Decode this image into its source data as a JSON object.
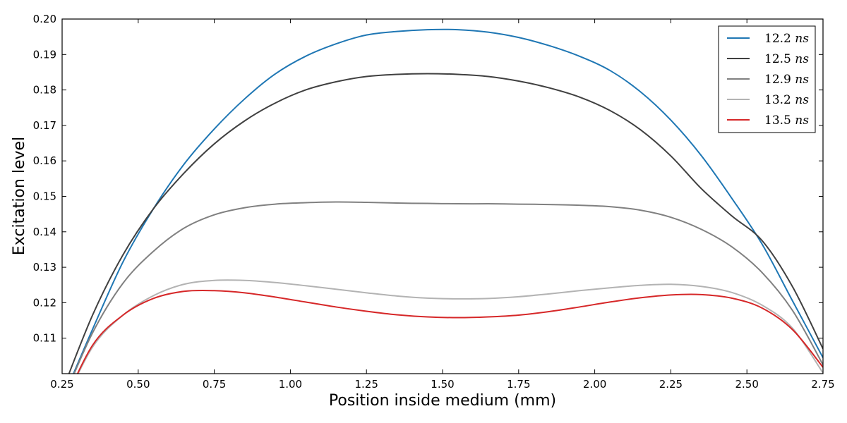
{
  "chart_data": {
    "type": "line",
    "title": "",
    "xlabel": "Position inside medium (mm)",
    "ylabel": "Excitation level",
    "xlim": [
      0.25,
      2.75
    ],
    "ylim": [
      0.1,
      0.2
    ],
    "x_ticks": [
      "0.25",
      "0.50",
      "0.75",
      "1.00",
      "1.25",
      "1.50",
      "1.75",
      "2.00",
      "2.25",
      "2.50",
      "2.75"
    ],
    "y_ticks": [
      "0.11",
      "0.12",
      "0.13",
      "0.14",
      "0.15",
      "0.16",
      "0.17",
      "0.18",
      "0.19",
      "0.20"
    ],
    "grid": false,
    "legend_position": "top-right",
    "x": [
      0.25,
      0.35,
      0.45,
      0.55,
      0.65,
      0.75,
      0.85,
      0.95,
      1.05,
      1.15,
      1.25,
      1.35,
      1.45,
      1.55,
      1.65,
      1.75,
      1.85,
      1.95,
      2.05,
      2.15,
      2.25,
      2.35,
      2.45,
      2.55,
      2.65,
      2.75
    ],
    "series": [
      {
        "name": "12.2 ns",
        "color": "#1f77b4",
        "values": [
          0.0925,
          0.1125,
          0.1315,
          0.1465,
          0.159,
          0.169,
          0.1775,
          0.1845,
          0.1895,
          0.193,
          0.1955,
          0.1965,
          0.197,
          0.197,
          0.1963,
          0.1948,
          0.1925,
          0.1895,
          0.1855,
          0.1795,
          0.1715,
          0.1615,
          0.1495,
          0.1365,
          0.1205,
          0.1045
        ]
      },
      {
        "name": "12.5 ns",
        "color": "#404040",
        "values": [
          0.095,
          0.1165,
          0.1335,
          0.1465,
          0.1565,
          0.1648,
          0.1713,
          0.1763,
          0.18,
          0.1823,
          0.1838,
          0.1844,
          0.1846,
          0.1844,
          0.1838,
          0.1825,
          0.1806,
          0.178,
          0.1742,
          0.1688,
          0.1614,
          0.1522,
          0.1445,
          0.1375,
          0.1245,
          0.107
        ]
      },
      {
        "name": "12.9 ns",
        "color": "#808080",
        "values": [
          0.092,
          0.1115,
          0.1255,
          0.1345,
          0.141,
          0.1448,
          0.1468,
          0.1478,
          0.1482,
          0.1484,
          0.1483,
          0.1481,
          0.148,
          0.1479,
          0.1479,
          0.1478,
          0.1477,
          0.1475,
          0.1471,
          0.1461,
          0.1441,
          0.1407,
          0.1358,
          0.1285,
          0.1178,
          0.1025
        ]
      },
      {
        "name": "13.2 ns",
        "color": "#b3b3b3",
        "values": [
          0.0905,
          0.1075,
          0.1165,
          0.122,
          0.1252,
          0.1263,
          0.1263,
          0.1257,
          0.1248,
          0.1238,
          0.1228,
          0.1219,
          0.1213,
          0.1211,
          0.1212,
          0.1217,
          0.1225,
          0.1234,
          0.1242,
          0.1249,
          0.1252,
          0.1246,
          0.1229,
          0.1193,
          0.1128,
          0.1002
        ]
      },
      {
        "name": "13.5 ns",
        "color": "#d62728",
        "values": [
          0.0905,
          0.108,
          0.1165,
          0.1212,
          0.1232,
          0.1234,
          0.1228,
          0.1216,
          0.1202,
          0.1188,
          0.1176,
          0.1166,
          0.116,
          0.1158,
          0.116,
          0.1165,
          0.1175,
          0.1188,
          0.1202,
          0.1214,
          0.1222,
          0.1223,
          0.1213,
          0.1185,
          0.1124,
          0.1018
        ]
      }
    ]
  }
}
